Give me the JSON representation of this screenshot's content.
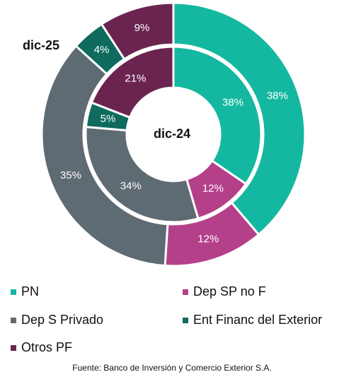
{
  "chart_data": {
    "type": "pie",
    "categories": [
      "PN",
      "Dep SP no F",
      "Dep S Privado",
      "Ent Financ del Exterior",
      "Otros PF"
    ],
    "colors": [
      "#14b8a0",
      "#b5408a",
      "#5f6b72",
      "#0e6b5e",
      "#6b2450"
    ],
    "series": [
      {
        "name": "dic-25",
        "values": [
          38,
          12,
          35,
          4,
          9
        ],
        "value_labels": [
          "38%",
          "12%",
          "35%",
          "4%",
          "9%"
        ]
      },
      {
        "name": "dic-24",
        "values": [
          38,
          12,
          34,
          5,
          21
        ],
        "value_labels": [
          "38%",
          "12%",
          "34%",
          "5%",
          "21%"
        ]
      }
    ],
    "source": "Fuente: Banco de Inversión y Comercio Exterior S.A."
  }
}
